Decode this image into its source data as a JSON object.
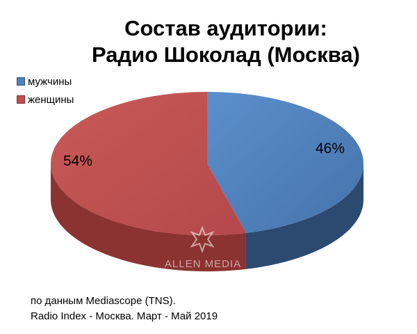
{
  "chart_data": {
    "type": "pie",
    "title_lines": [
      "Состав аудитории:",
      "Радио Шоколад (Москва)"
    ],
    "series": [
      {
        "name": "мужчины",
        "value": 46,
        "label": "46%",
        "color": "#4f81bd",
        "side_color": "#2c4a70"
      },
      {
        "name": "женщины",
        "value": 54,
        "label": "54%",
        "color": "#c0504d",
        "side_color": "#8b3331"
      }
    ],
    "legend_position": "top-left"
  },
  "watermark": {
    "text": "ALLEN MEDIA",
    "icon": "star-burst-icon"
  },
  "source": {
    "line1": "по данным Mediascope (TNS).",
    "line2": "Radio Index - Москва. Март - Май 2019"
  }
}
